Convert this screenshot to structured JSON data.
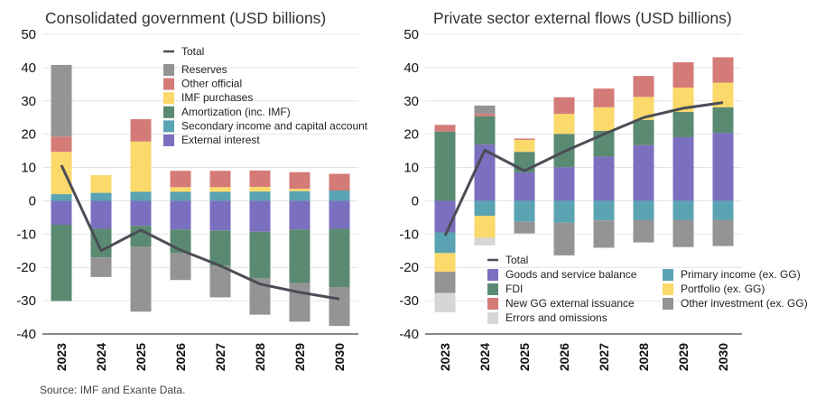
{
  "source": "Source: IMF and Exante Data.",
  "chart_data": [
    {
      "type": "bar",
      "stacked": true,
      "title": "Consolidated government (USD billions)",
      "ylim": [
        -40,
        50
      ],
      "yticks": [
        -40,
        -30,
        -20,
        -10,
        0,
        10,
        20,
        30,
        40,
        50
      ],
      "categories": [
        "2023",
        "2024",
        "2025",
        "2026",
        "2027",
        "2028",
        "2029",
        "2030"
      ],
      "legend_placement": "top-right",
      "total": {
        "name": "Total",
        "color": "#4a4d55",
        "values": [
          10.7,
          -15.0,
          -8.8,
          -14.8,
          -19.5,
          -25.0,
          -27.5,
          -29.5
        ]
      },
      "series": [
        {
          "name": "External interest",
          "color": "#7b6fbf",
          "values": [
            -7.2,
            -8.4,
            -7.5,
            -8.6,
            -8.9,
            -9.3,
            -8.6,
            -8.4
          ]
        },
        {
          "name": "Secondary income and capital account",
          "color": "#5aa3b3",
          "values": [
            2.0,
            2.4,
            2.7,
            2.7,
            2.7,
            2.8,
            2.9,
            3.1
          ]
        },
        {
          "name": "Amortization (inc. IMF)",
          "color": "#5a8a72",
          "values": [
            -22.9,
            -8.6,
            -6.3,
            -7.1,
            -10.6,
            -14.0,
            -16.1,
            -17.5
          ]
        },
        {
          "name": "IMF purchases",
          "color": "#fbd96a",
          "values": [
            12.7,
            5.3,
            15.1,
            1.4,
            1.4,
            1.4,
            0.7,
            0.0
          ]
        },
        {
          "name": "Other official",
          "color": "#d47b78",
          "values": [
            4.6,
            0.0,
            6.7,
            4.9,
            4.9,
            4.9,
            5.0,
            5.0
          ]
        },
        {
          "name": "Reserves",
          "color": "#949494",
          "values": [
            21.5,
            -5.9,
            -19.5,
            -8.1,
            -9.5,
            -10.9,
            -11.6,
            -11.7
          ]
        }
      ],
      "legend_order": [
        "Total",
        "Reserves",
        "Other official",
        "IMF purchases",
        "Amortization (inc. IMF)",
        "Secondary income and capital account",
        "External interest"
      ]
    },
    {
      "type": "bar",
      "stacked": true,
      "title": "Private sector external flows (USD billions)",
      "ylim": [
        -40,
        50
      ],
      "yticks": [
        -40,
        -30,
        -20,
        -10,
        0,
        10,
        20,
        30,
        40,
        50
      ],
      "categories": [
        "2023",
        "2024",
        "2025",
        "2026",
        "2027",
        "2028",
        "2029",
        "2030"
      ],
      "legend_placement": "bottom",
      "total": {
        "name": "Total",
        "color": "#4a4d55",
        "values": [
          -10.5,
          15.2,
          9.0,
          14.8,
          20.0,
          25.0,
          27.8,
          29.5
        ]
      },
      "series": [
        {
          "name": "Goods and service balance",
          "color": "#7b6fbf",
          "values": [
            -9.5,
            16.9,
            8.5,
            10.1,
            13.3,
            16.7,
            19.1,
            20.4
          ]
        },
        {
          "name": "Primary income (ex. GG)",
          "color": "#5aa3b3",
          "values": [
            -6.2,
            -4.5,
            -6.3,
            -6.6,
            -5.9,
            -5.7,
            -5.7,
            -5.7
          ]
        },
        {
          "name": "FDI",
          "color": "#5a8a72",
          "values": [
            20.8,
            8.5,
            6.2,
            10.0,
            7.7,
            7.6,
            7.6,
            7.7
          ]
        },
        {
          "name": "Portfolio (ex. GG)",
          "color": "#fbd96a",
          "values": [
            -5.6,
            -6.6,
            3.6,
            6.0,
            7.1,
            6.9,
            7.3,
            7.4
          ]
        },
        {
          "name": "New GG external issuance",
          "color": "#d47b78",
          "values": [
            2.0,
            0.8,
            0.4,
            5.0,
            5.6,
            6.3,
            7.6,
            7.6
          ]
        },
        {
          "name": "Other investment (ex. GG)",
          "color": "#949494",
          "values": [
            -6.4,
            2.4,
            -3.5,
            -9.8,
            -8.2,
            -6.8,
            -8.2,
            -7.9
          ]
        },
        {
          "name": "Errors and omissions",
          "color": "#d6d6d6",
          "values": [
            -5.8,
            -2.3,
            0.0,
            0.0,
            0.0,
            0.0,
            0.0,
            0.0
          ]
        }
      ],
      "legend_order": [
        "Total",
        "Goods and service balance",
        "FDI",
        "New GG external issuance",
        "Errors and omissions",
        "Primary income (ex. GG)",
        "Portfolio (ex. GG)",
        "Other investment (ex. GG)"
      ]
    }
  ]
}
